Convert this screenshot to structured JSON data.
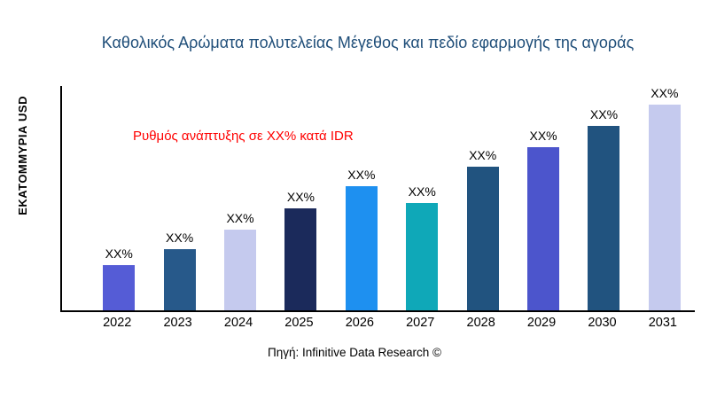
{
  "title": "Καθολικός Αρώματα πολυτελείας Μέγεθος και πεδίο εφαρμογής της αγοράς",
  "annotation": "Ρυθμός ανάπτυξης σε XX% κατά IDR",
  "source": "Πηγή: Infinitive Data Research ©",
  "colors": {
    "title": "#1F4E79",
    "annotation": "#FF0000",
    "axis": "#000000"
  },
  "chart_data": {
    "type": "bar",
    "title": "Καθολικός Αρώματα πολυτελείας Μέγεθος και πεδίο εφαρμογής της αγοράς",
    "xlabel": "",
    "ylabel": "ΕΚΑΤΟΜΜΥΡΙΑ USD",
    "categories": [
      "2022",
      "2023",
      "2024",
      "2025",
      "2026",
      "2027",
      "2028",
      "2029",
      "2030",
      "2031"
    ],
    "values": [
      50,
      68,
      90,
      114,
      138,
      120,
      160,
      182,
      206,
      230
    ],
    "values_note": "actual magnitudes not shown in chart (labels are XX%); values are relative heights estimated from pixels",
    "value_labels": [
      "XX%",
      "XX%",
      "XX%",
      "XX%",
      "XX%",
      "XX%",
      "XX%",
      "XX%",
      "XX%",
      "XX%"
    ],
    "bar_colors": [
      "#555CD6",
      "#27598A",
      "#C5CAEE",
      "#1B2A5B",
      "#1E90F0",
      "#0FA8B8",
      "#21537F",
      "#4C55CC",
      "#21537F",
      "#C5CAEE"
    ],
    "ylim": [
      0,
      250
    ],
    "grid": false,
    "legend": false,
    "annotation": "Ρυθμός ανάπτυξης σε XX% κατά IDR",
    "annotation_color": "#FF0000"
  }
}
